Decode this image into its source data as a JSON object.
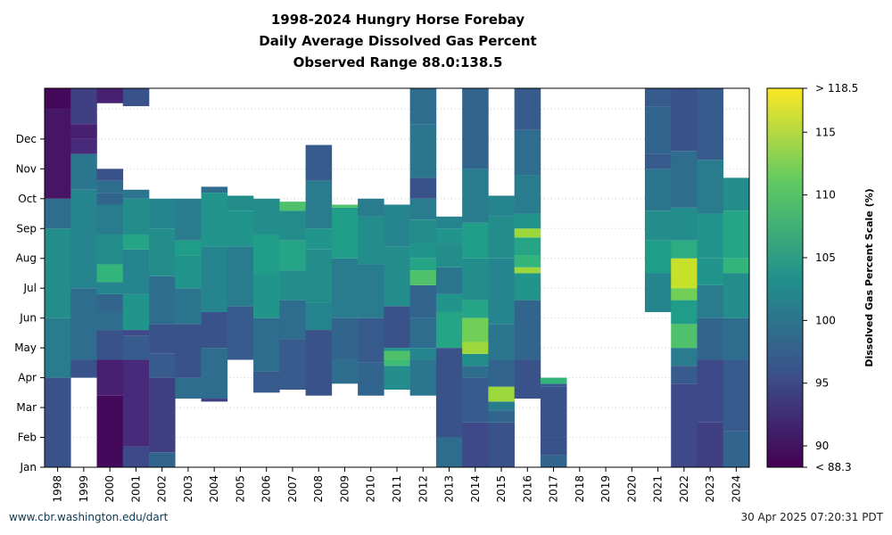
{
  "chart_data": {
    "type": "heatmap",
    "title_lines": [
      "1998-2024 Hungry Horse Forebay",
      "Daily Average Dissolved Gas Percent",
      "Observed Range 88.0:138.5"
    ],
    "x_categories": [
      "1998",
      "1999",
      "2000",
      "2001",
      "2002",
      "2003",
      "2004",
      "2005",
      "2006",
      "2007",
      "2008",
      "2009",
      "2010",
      "2011",
      "2012",
      "2013",
      "2014",
      "2015",
      "2016",
      "2017",
      "2018",
      "2019",
      "2020",
      "2021",
      "2022",
      "2023",
      "2024"
    ],
    "y_tick_labels": [
      "Jan",
      "Feb",
      "Mar",
      "Apr",
      "May",
      "Jun",
      "Jul",
      "Aug",
      "Sep",
      "Oct",
      "Nov",
      "Dec"
    ],
    "colorbar": {
      "label": "Dissolved Gas Percent Scale (%)",
      "min": 88.3,
      "max": 118.5,
      "ticks": [
        90,
        95,
        100,
        105,
        110,
        115
      ],
      "min_label": "< 88.3",
      "max_label": "> 118.5",
      "colormap": "viridis"
    },
    "grid": "horizontal dotted",
    "columns": [
      {
        "year": "1998",
        "segments": [
          [
            0,
            3,
            96
          ],
          [
            3,
            5,
            101
          ],
          [
            5,
            8,
            103
          ],
          [
            8,
            9,
            99
          ],
          [
            9,
            12,
            90
          ],
          [
            12,
            12.7,
            89
          ]
        ]
      },
      {
        "year": "1999",
        "segments": [
          [
            3,
            3.6,
            96
          ],
          [
            3.6,
            6,
            99
          ],
          [
            6,
            9.3,
            102
          ],
          [
            9.3,
            10.5,
            100
          ],
          [
            10.5,
            11,
            92
          ],
          [
            11,
            11.5,
            91
          ],
          [
            11.5,
            12.7,
            94
          ]
        ]
      },
      {
        "year": "2000",
        "segments": [
          [
            0,
            2.4,
            89
          ],
          [
            2.4,
            3.6,
            91
          ],
          [
            3.6,
            4.6,
            96
          ],
          [
            4.6,
            5.2,
            99
          ],
          [
            5.2,
            5.8,
            98
          ],
          [
            5.8,
            6.2,
            102
          ],
          [
            6.2,
            6.8,
            108
          ],
          [
            6.8,
            7.8,
            103
          ],
          [
            7.8,
            8.8,
            101
          ],
          [
            8.8,
            9.2,
            98
          ],
          [
            9.2,
            9.6,
            99
          ],
          [
            9.6,
            10,
            96
          ],
          [
            12.2,
            12.7,
            91
          ]
        ]
      },
      {
        "year": "2001",
        "segments": [
          [
            0,
            0.7,
            95
          ],
          [
            0.7,
            3.6,
            92
          ],
          [
            3.6,
            4.4,
            97
          ],
          [
            4.4,
            4.6,
            95
          ],
          [
            4.6,
            5.8,
            104
          ],
          [
            5.8,
            7.3,
            102
          ],
          [
            7.3,
            7.8,
            106
          ],
          [
            7.8,
            9,
            103
          ],
          [
            9,
            9.3,
            100
          ],
          [
            12.1,
            12.7,
            96
          ]
        ]
      },
      {
        "year": "2002",
        "segments": [
          [
            0,
            0.5,
            98
          ],
          [
            0.5,
            3.0,
            94
          ],
          [
            3.0,
            3.8,
            97
          ],
          [
            3.8,
            4.8,
            96
          ],
          [
            4.8,
            6.4,
            99
          ],
          [
            6.4,
            8.0,
            103
          ],
          [
            8.0,
            9.0,
            102
          ]
        ]
      },
      {
        "year": "2003",
        "segments": [
          [
            2.3,
            3.0,
            99
          ],
          [
            3.0,
            4.8,
            96
          ],
          [
            4.8,
            6.0,
            100
          ],
          [
            6.0,
            7.1,
            104
          ],
          [
            7.1,
            7.6,
            105
          ],
          [
            7.6,
            9.0,
            101
          ]
        ]
      },
      {
        "year": "2004",
        "segments": [
          [
            2.2,
            2.3,
            94
          ],
          [
            2.3,
            4.0,
            99
          ],
          [
            4.0,
            5.2,
            96
          ],
          [
            5.2,
            7.4,
            102
          ],
          [
            7.4,
            9.2,
            104
          ],
          [
            9.2,
            9.4,
            99
          ]
        ]
      },
      {
        "year": "2005",
        "segments": [
          [
            3.6,
            5.4,
            97
          ],
          [
            5.4,
            7.4,
            101
          ],
          [
            7.4,
            8.6,
            104
          ],
          [
            8.6,
            9.1,
            103
          ]
        ]
      },
      {
        "year": "2006",
        "segments": [
          [
            2.5,
            3.2,
            97
          ],
          [
            3.2,
            5.0,
            99
          ],
          [
            5.0,
            6.5,
            104
          ],
          [
            6.5,
            7.8,
            105
          ],
          [
            7.8,
            9.0,
            103
          ]
        ]
      },
      {
        "year": "2007",
        "segments": [
          [
            2.6,
            4.3,
            97
          ],
          [
            4.3,
            5.6,
            99
          ],
          [
            5.6,
            6.6,
            103
          ],
          [
            6.6,
            7.6,
            106
          ],
          [
            7.6,
            8.6,
            103
          ],
          [
            8.6,
            8.9,
            110
          ]
        ]
      },
      {
        "year": "2008",
        "segments": [
          [
            2.4,
            4.6,
            96
          ],
          [
            4.6,
            5.5,
            102
          ],
          [
            5.5,
            7.3,
            103
          ],
          [
            7.3,
            8.0,
            104
          ],
          [
            8.0,
            9.6,
            101
          ],
          [
            9.6,
            10.8,
            97
          ]
        ]
      },
      {
        "year": "2009",
        "segments": [
          [
            2.8,
            3.6,
            99
          ],
          [
            3.6,
            5.0,
            98
          ],
          [
            5.0,
            7.0,
            101
          ],
          [
            7.0,
            8.7,
            105
          ],
          [
            8.7,
            8.8,
            110
          ]
        ]
      },
      {
        "year": "2010",
        "segments": [
          [
            2.4,
            3.5,
            98
          ],
          [
            3.5,
            5.0,
            97
          ],
          [
            5.0,
            6.8,
            101
          ],
          [
            6.8,
            8.4,
            103
          ],
          [
            8.4,
            9.0,
            101
          ]
        ]
      },
      {
        "year": "2011",
        "segments": [
          [
            2.6,
            3.4,
            103
          ],
          [
            3.4,
            3.6,
            109
          ],
          [
            3.6,
            3.9,
            110
          ],
          [
            3.9,
            4.0,
            104
          ],
          [
            4.0,
            5.4,
            96
          ],
          [
            5.4,
            7.4,
            103
          ],
          [
            7.4,
            8.8,
            102
          ]
        ]
      },
      {
        "year": "2012",
        "segments": [
          [
            2.4,
            3.6,
            100
          ],
          [
            3.6,
            4.0,
            102
          ],
          [
            4.0,
            5.0,
            99
          ],
          [
            5.0,
            6.1,
            98
          ],
          [
            6.1,
            6.6,
            110
          ],
          [
            6.6,
            7.0,
            106
          ],
          [
            7.0,
            7.5,
            104
          ],
          [
            7.5,
            8.3,
            103
          ],
          [
            8.3,
            9.0,
            101
          ],
          [
            9.0,
            9.7,
            96
          ],
          [
            9.7,
            11.5,
            100
          ],
          [
            11.5,
            12.7,
            99
          ]
        ]
      },
      {
        "year": "2013",
        "segments": [
          [
            0,
            1.0,
            99
          ],
          [
            1.0,
            4.0,
            96
          ],
          [
            4.0,
            5.2,
            106
          ],
          [
            5.2,
            5.8,
            104
          ],
          [
            5.8,
            6.7,
            100
          ],
          [
            6.7,
            7.5,
            103
          ],
          [
            7.5,
            8.0,
            104
          ],
          [
            8.0,
            8.4,
            102
          ]
        ]
      },
      {
        "year": "2014",
        "segments": [
          [
            0,
            1.5,
            95
          ],
          [
            1.5,
            3.0,
            97
          ],
          [
            3.0,
            3.4,
            99
          ],
          [
            3.4,
            3.8,
            103
          ],
          [
            3.8,
            4.2,
            114
          ],
          [
            4.2,
            5.0,
            112
          ],
          [
            5.0,
            5.6,
            106
          ],
          [
            5.6,
            7.0,
            103
          ],
          [
            7.0,
            8.2,
            105
          ],
          [
            8.2,
            10,
            101
          ],
          [
            10,
            12.7,
            98
          ]
        ]
      },
      {
        "year": "2015",
        "segments": [
          [
            0,
            1.5,
            96
          ],
          [
            1.5,
            1.9,
            98
          ],
          [
            1.9,
            2.2,
            101
          ],
          [
            2.2,
            2.7,
            114
          ],
          [
            2.7,
            3.6,
            98
          ],
          [
            3.6,
            4.8,
            100
          ],
          [
            4.8,
            7.0,
            102
          ],
          [
            7.0,
            8.4,
            103
          ],
          [
            8.4,
            9.1,
            102
          ]
        ]
      },
      {
        "year": "2016",
        "segments": [
          [
            2.3,
            3.6,
            96
          ],
          [
            3.6,
            5.6,
            98
          ],
          [
            5.6,
            6.5,
            104
          ],
          [
            6.5,
            6.7,
            114
          ],
          [
            6.7,
            7.1,
            108
          ],
          [
            7.1,
            7.7,
            106
          ],
          [
            7.7,
            8.0,
            114
          ],
          [
            8.0,
            8.5,
            104
          ],
          [
            8.5,
            9.8,
            101
          ],
          [
            9.8,
            11.3,
            99
          ],
          [
            11.3,
            12.7,
            97
          ]
        ]
      },
      {
        "year": "2017",
        "segments": [
          [
            0,
            0.4,
            98
          ],
          [
            0.4,
            1.0,
            96
          ],
          [
            1.0,
            2.7,
            96
          ],
          [
            2.7,
            2.8,
            97
          ],
          [
            2.8,
            3.0,
            108
          ]
        ]
      },
      {
        "year": "2018",
        "segments": []
      },
      {
        "year": "2019",
        "segments": []
      },
      {
        "year": "2020",
        "segments": []
      },
      {
        "year": "2021",
        "segments": [
          [
            5.2,
            6.5,
            102
          ],
          [
            6.5,
            7.6,
            105
          ],
          [
            7.6,
            8.6,
            103
          ],
          [
            8.6,
            10.0,
            100
          ],
          [
            10.0,
            10.5,
            97
          ],
          [
            10.5,
            12.1,
            98
          ],
          [
            12.1,
            12.7,
            97
          ]
        ]
      },
      {
        "year": "2022",
        "segments": [
          [
            0,
            2.8,
            95
          ],
          [
            2.8,
            3.4,
            97
          ],
          [
            3.4,
            4.0,
            101
          ],
          [
            4.0,
            4.8,
            110
          ],
          [
            4.8,
            5.6,
            105
          ],
          [
            5.6,
            6.0,
            112
          ],
          [
            6.0,
            7.0,
            116
          ],
          [
            7.0,
            7.6,
            107
          ],
          [
            7.6,
            8.7,
            103
          ],
          [
            8.7,
            10.6,
            99
          ],
          [
            10.6,
            12.7,
            96
          ]
        ]
      },
      {
        "year": "2023",
        "segments": [
          [
            0,
            1.5,
            94
          ],
          [
            1.5,
            3.6,
            95
          ],
          [
            3.6,
            5.0,
            98
          ],
          [
            5.0,
            6.1,
            101
          ],
          [
            6.1,
            7.0,
            104
          ],
          [
            7.0,
            8.5,
            104
          ],
          [
            8.5,
            10.3,
            101
          ],
          [
            10.3,
            12.7,
            97
          ]
        ]
      },
      {
        "year": "2024",
        "segments": [
          [
            0,
            1.2,
            98
          ],
          [
            1.2,
            3.6,
            97
          ],
          [
            3.6,
            5.0,
            99
          ],
          [
            5.0,
            6.5,
            103
          ],
          [
            6.5,
            7.0,
            108
          ],
          [
            7.0,
            8.6,
            106
          ],
          [
            8.6,
            9.7,
            103
          ]
        ]
      }
    ]
  },
  "footer": {
    "source": "www.cbr.washington.edu/dart",
    "timestamp": "30 Apr 2025 07:20:31 PDT"
  }
}
